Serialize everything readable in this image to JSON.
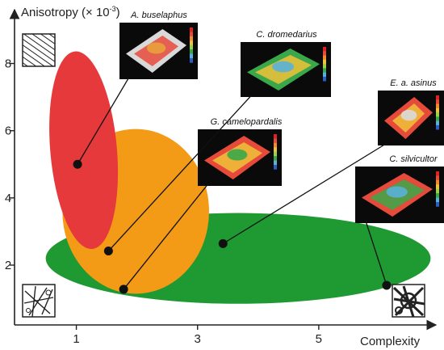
{
  "chart_data": {
    "type": "scatter",
    "title": "",
    "xlabel": "Complexity",
    "ylabel": "Anisotropy (× 10",
    "ylabel_exp": "-3",
    "ylabel_close": ")",
    "x_ticks": [
      1,
      3,
      5
    ],
    "y_ticks": [
      2,
      4,
      6,
      8
    ],
    "xlim": [
      -0.02,
      7.0
    ],
    "ylim": [
      0.22,
      9.6
    ],
    "colors": {
      "red_group": "#e5393b",
      "orange_group": "#f39b16",
      "green_group": "#1f9932",
      "point": "#111111"
    },
    "regions": [
      {
        "name": "red",
        "color": "#e5393b",
        "cx": 1.12,
        "cy": 5.42,
        "rx": 1.1,
        "ry": 2.95,
        "rotate": -5
      },
      {
        "name": "orange",
        "color": "#f39b16",
        "cx": 1.98,
        "cy": 3.6,
        "rx": 2.42,
        "ry": 2.45,
        "rotate": 0
      },
      {
        "name": "green",
        "color": "#1f9932",
        "cx": 3.67,
        "cy": 2.2,
        "rx": 6.35,
        "ry": 1.35,
        "rotate": 0
      }
    ],
    "series": [
      {
        "name": "A. buselaphus",
        "x": 1.02,
        "y": 5.0,
        "thumb_colors": [
          "#d9d9d9",
          "#e64a3b",
          "#e8a23a"
        ]
      },
      {
        "name": "C. dromedarius",
        "x": 1.53,
        "y": 2.42,
        "thumb_colors": [
          "#3aa84a",
          "#f0c23a",
          "#5ab0d8"
        ]
      },
      {
        "name": "G. camelopardalis",
        "x": 1.78,
        "y": 1.28,
        "thumb_colors": [
          "#e64a3b",
          "#f0c23a",
          "#3aa84a"
        ]
      },
      {
        "name": "E. a. asinus",
        "x": 3.42,
        "y": 2.64,
        "thumb_colors": [
          "#e64a3b",
          "#f0c23a",
          "#d9d9d9"
        ]
      },
      {
        "name": "C. silvicultor",
        "x": 6.12,
        "y": 1.4,
        "thumb_colors": [
          "#e64a3b",
          "#3aa84a",
          "#5ab0d8"
        ]
      }
    ]
  }
}
